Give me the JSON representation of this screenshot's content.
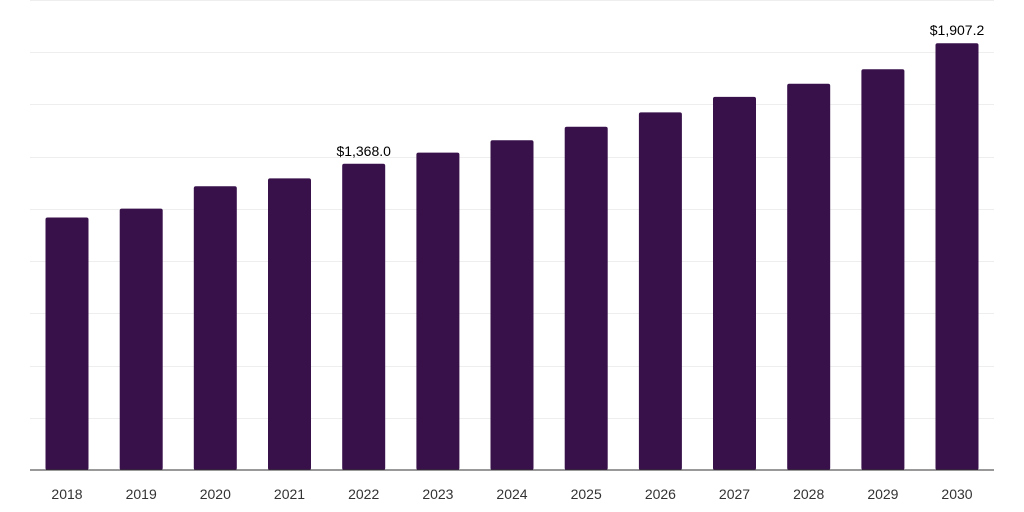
{
  "chart_data": {
    "type": "bar",
    "title": "",
    "xlabel": "",
    "ylabel": "",
    "categories": [
      "2018",
      "2019",
      "2020",
      "2021",
      "2022",
      "2023",
      "2024",
      "2025",
      "2026",
      "2027",
      "2028",
      "2029",
      "2030"
    ],
    "values": [
      1128,
      1168,
      1268,
      1303,
      1368,
      1418,
      1473,
      1534,
      1598,
      1667,
      1726,
      1791,
      1907.2
    ],
    "data_labels": [
      {
        "index": 4,
        "text": "$1,368.0"
      },
      {
        "index": 12,
        "text": "$1,907.2"
      }
    ],
    "ylim": [
      0,
      2100
    ],
    "ytick_step": 233.33,
    "grid": true,
    "legend": "none",
    "colors": {
      "bar": "#38114b",
      "grid": "#eeeeee",
      "axis": "#333333"
    }
  }
}
